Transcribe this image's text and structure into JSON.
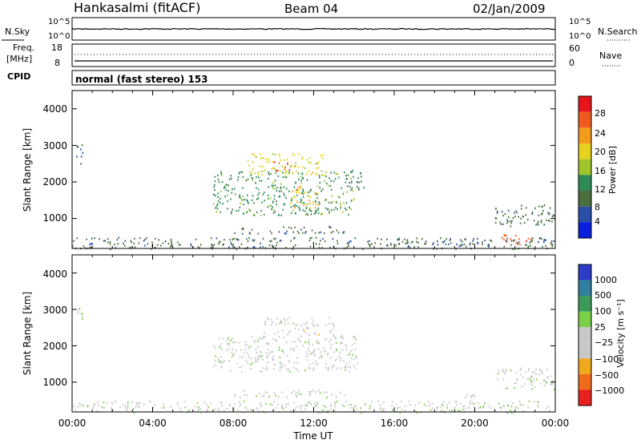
{
  "header": {
    "station": "Hankasalmi (fitACF)",
    "beam": "Beam 04",
    "date": "02/Jan/2009"
  },
  "sky_panel": {
    "left_label": "N.Sky",
    "left_ticks": [
      "10^5",
      "10^0"
    ],
    "right_label": "N.Search",
    "right_ticks": [
      "10^5",
      "10^0"
    ]
  },
  "freq_panel": {
    "left_label_top": "Freq.",
    "left_label_bottom": "[MHz]",
    "left_ticks": [
      "18",
      "8"
    ],
    "right_label": "Nave",
    "right_ticks": [
      "60",
      "0"
    ]
  },
  "cpid_panel": {
    "label": "CPID",
    "text": "normal (fast stereo) 153"
  },
  "power_panel": {
    "ylabel": "Slant Range [km]",
    "yticks": [
      "4000",
      "3000",
      "2000",
      "1000"
    ],
    "colorbar_label": "Power [dB]",
    "colorbar_ticks": [
      "28",
      "24",
      "20",
      "16",
      "12",
      "8",
      "4"
    ],
    "colorbar_colors": [
      "#e8141c",
      "#f05a1e",
      "#f59b1c",
      "#e6d21e",
      "#9ec62a",
      "#2e8b57",
      "#4a6e3c",
      "#2a4fa8",
      "#0a1ee0"
    ]
  },
  "velocity_panel": {
    "ylabel": "Slant Range [km]",
    "yticks": [
      "4000",
      "3000",
      "2000",
      "1000"
    ],
    "colorbar_label": "Velocity [m s⁻¹]",
    "colorbar_ticks": [
      "1000",
      "500",
      "100",
      "25",
      "−25",
      "−100",
      "−500",
      "−1000"
    ],
    "colorbar_colors": [
      "#2a3cc8",
      "#2f7fa0",
      "#3a9a5a",
      "#7bd04a",
      "#c8c8c8",
      "#c8c8c8",
      "#f0a81c",
      "#f06a1c",
      "#e82020"
    ]
  },
  "xaxis": {
    "label": "Time UT",
    "ticks": [
      "00:00",
      "04:00",
      "08:00",
      "12:00",
      "16:00",
      "20:00",
      "00:00"
    ]
  },
  "chart_data": {
    "type": "heatmap",
    "title": "Hankasalmi (fitACF)  Beam 04  02/Jan/2009",
    "xlabel": "Time UT",
    "ylabel": "Slant Range [km]",
    "xlim_hours": [
      0,
      24
    ],
    "ylim_km": [
      180,
      4500
    ],
    "panels": [
      {
        "name": "Power [dB]",
        "colorbar_range": [
          0,
          30
        ],
        "regions": [
          {
            "t_start": 0.2,
            "t_end": 0.5,
            "r_min": 2500,
            "r_max": 3050,
            "value": 6
          },
          {
            "t_start": 7.0,
            "t_end": 14.0,
            "r_min": 1100,
            "r_max": 2300,
            "value": 12
          },
          {
            "t_start": 8.7,
            "t_end": 12.5,
            "r_min": 2200,
            "r_max": 2800,
            "value": 18
          },
          {
            "t_start": 10.0,
            "t_end": 10.8,
            "r_min": 2300,
            "r_max": 2600,
            "value": 26
          },
          {
            "t_start": 10.8,
            "t_end": 12.2,
            "r_min": 1300,
            "r_max": 1900,
            "value": 20
          },
          {
            "t_start": 13.5,
            "t_end": 14.5,
            "r_min": 1800,
            "r_max": 2400,
            "value": 10
          },
          {
            "t_start": 8.0,
            "t_end": 13.5,
            "r_min": 600,
            "r_max": 800,
            "value": 8
          },
          {
            "t_start": 21.0,
            "t_end": 24.0,
            "r_min": 800,
            "r_max": 1400,
            "value": 8
          },
          {
            "t_start": 21.3,
            "t_end": 22.8,
            "r_min": 300,
            "r_max": 600,
            "value": 26
          },
          {
            "t_start": 0.0,
            "t_end": 24.0,
            "r_min": 180,
            "r_max": 500,
            "value": 8
          }
        ]
      },
      {
        "name": "Velocity [m s⁻¹]",
        "colorbar_range": [
          -1000,
          1000
        ],
        "regions": [
          {
            "t_start": 0.2,
            "t_end": 0.5,
            "r_min": 2600,
            "r_max": 3050,
            "value": 0
          },
          {
            "t_start": 7.0,
            "t_end": 14.2,
            "r_min": 1300,
            "r_max": 2300,
            "value": 0
          },
          {
            "t_start": 9.5,
            "t_end": 13.0,
            "r_min": 2300,
            "r_max": 2800,
            "value": -200
          },
          {
            "t_start": 8.0,
            "t_end": 13.5,
            "r_min": 600,
            "r_max": 800,
            "value": 0
          },
          {
            "t_start": 21.0,
            "t_end": 24.0,
            "r_min": 800,
            "r_max": 1400,
            "value": 0
          },
          {
            "t_start": 19.5,
            "t_end": 20.0,
            "r_min": 600,
            "r_max": 700,
            "value": -100
          },
          {
            "t_start": 0.0,
            "t_end": 24.0,
            "r_min": 180,
            "r_max": 500,
            "value": 50
          }
        ]
      }
    ],
    "n_sky_level": "~10^5 (flat)",
    "freq_mhz": 12,
    "nave_level": 30
  }
}
